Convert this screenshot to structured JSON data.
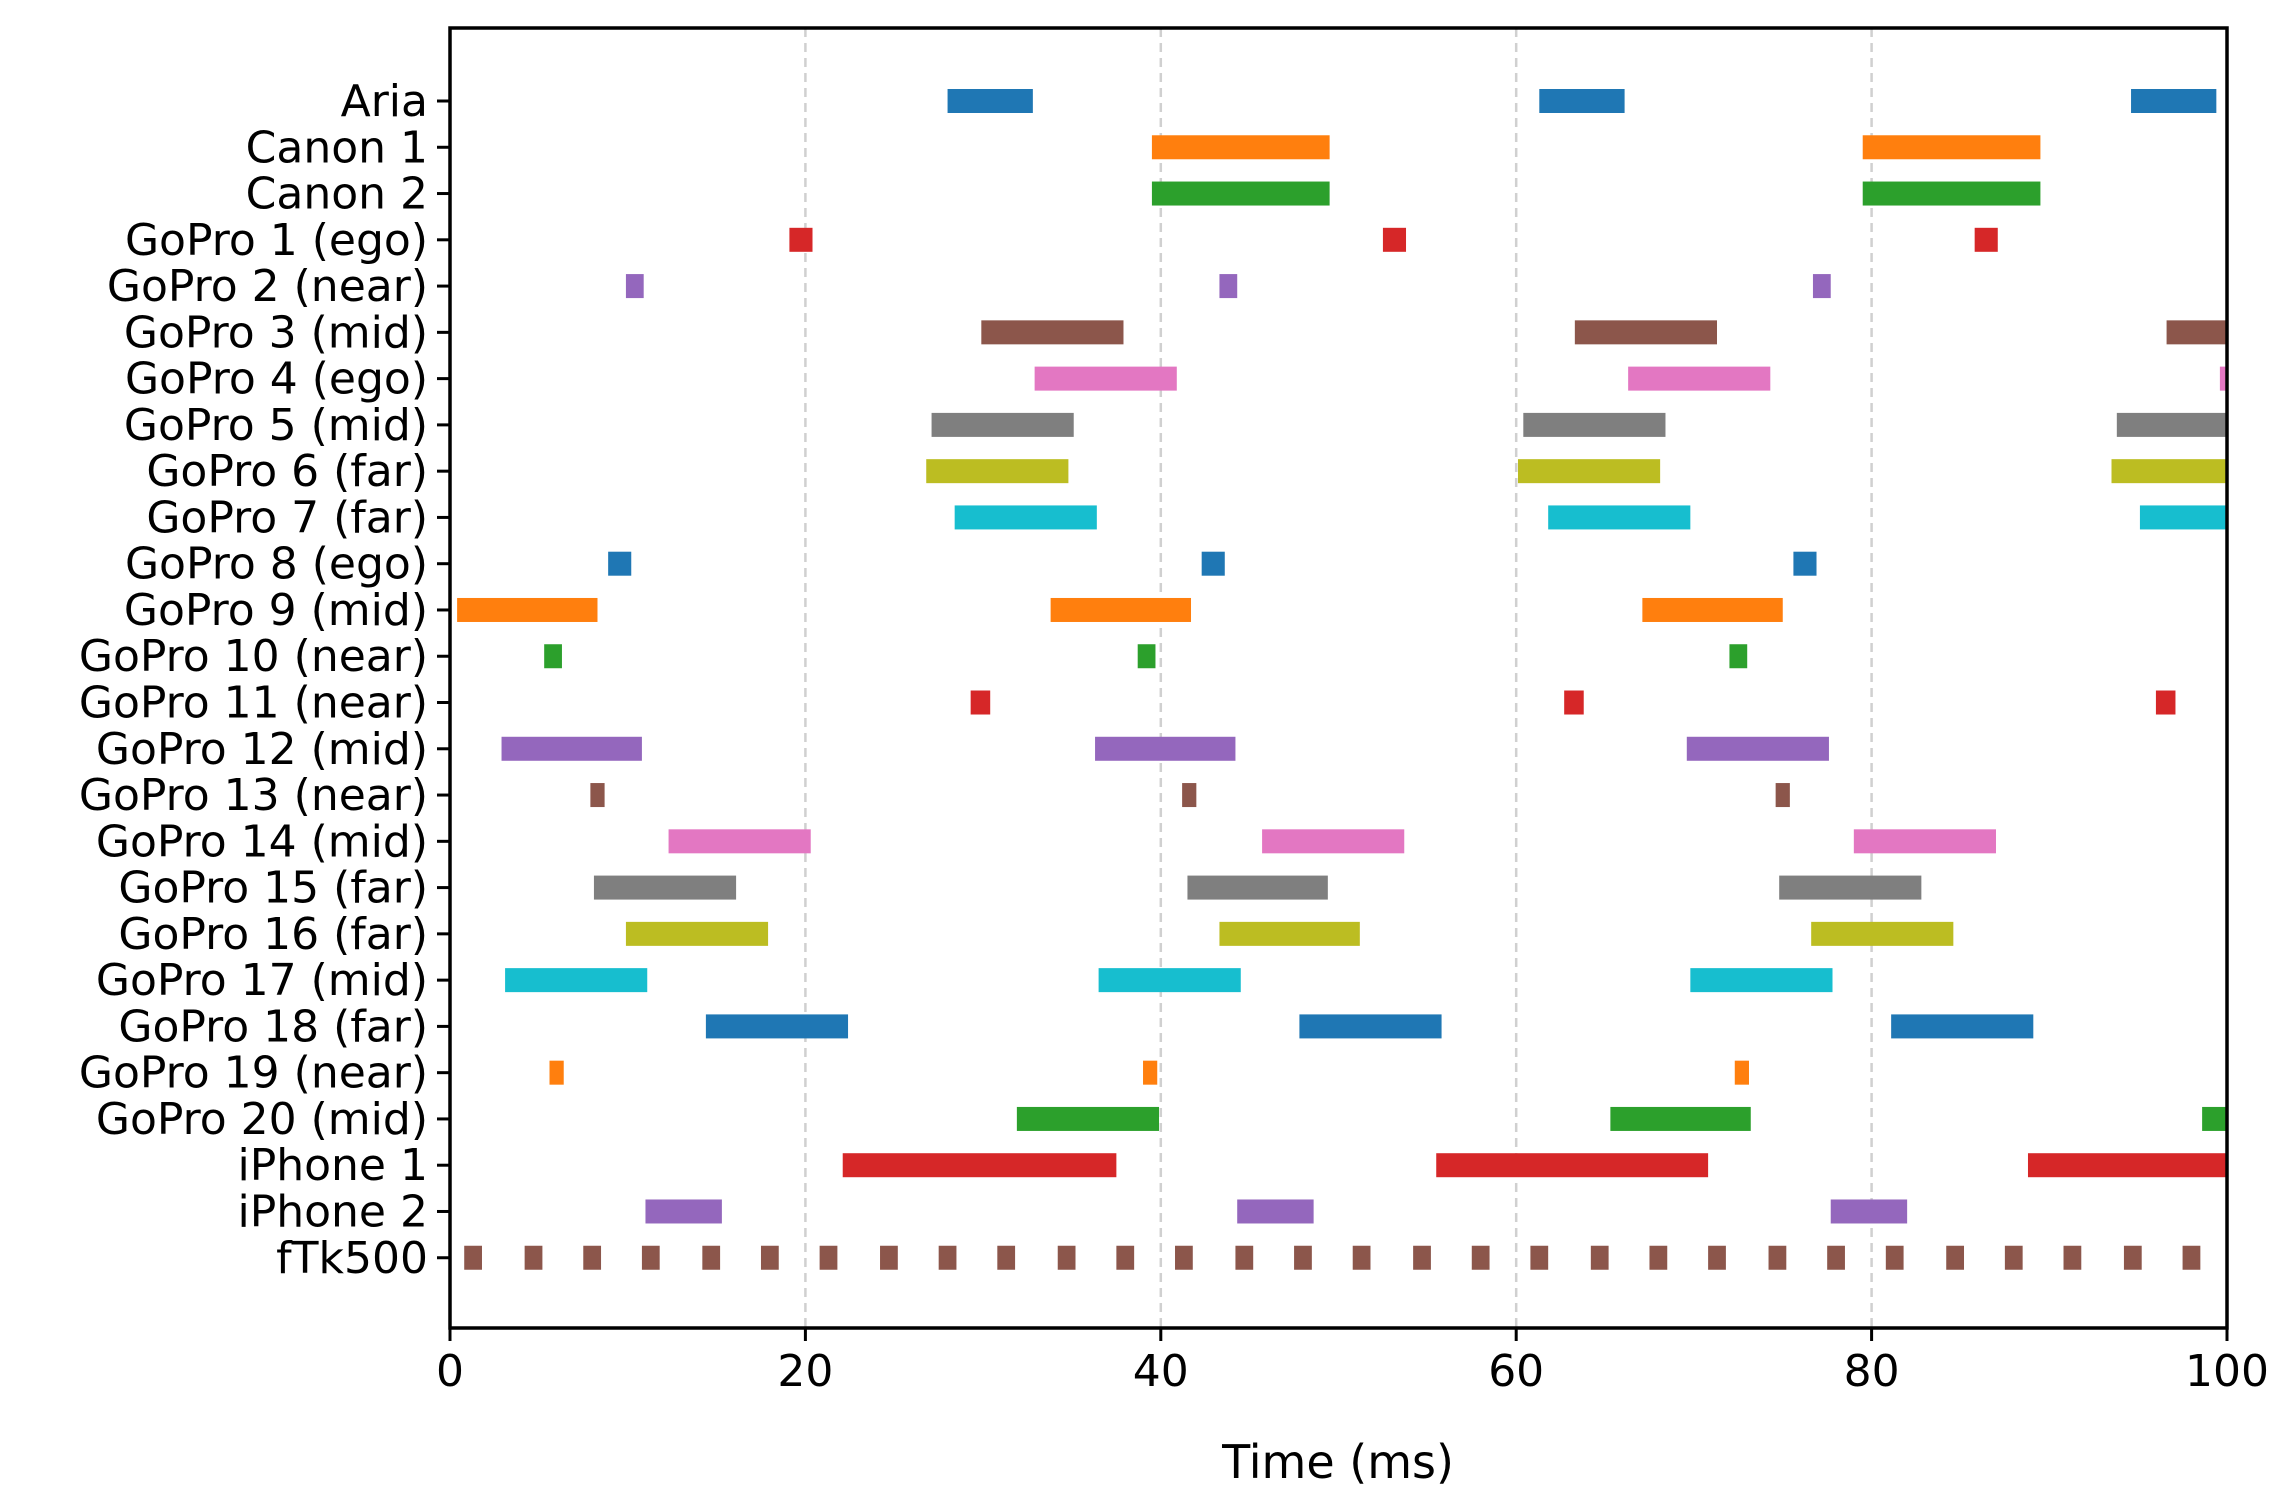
{
  "chart_data": {
    "type": "timeline",
    "title": "",
    "xlabel": "Time (ms)",
    "ylabel": "",
    "xlim": [
      0,
      100
    ],
    "xticks": [
      0,
      20,
      40,
      60,
      80,
      100
    ],
    "xtick_labels": [
      "0",
      "20",
      "40",
      "60",
      "80",
      "100"
    ],
    "grid": {
      "x_dashed_at": [
        20,
        40,
        60,
        80
      ]
    },
    "categories": [
      "Aria",
      "Canon 1",
      "Canon 2",
      "GoPro 1 (ego)",
      "GoPro 2 (near)",
      "GoPro 3 (mid)",
      "GoPro 4 (ego)",
      "GoPro 5 (mid)",
      "GoPro 6 (far)",
      "GoPro 7 (far)",
      "GoPro 8 (ego)",
      "GoPro 9 (mid)",
      "GoPro 10 (near)",
      "GoPro 11 (near)",
      "GoPro 12 (mid)",
      "GoPro 13 (near)",
      "GoPro 14 (mid)",
      "GoPro 15 (far)",
      "GoPro 16 (far)",
      "GoPro 17 (mid)",
      "GoPro 18 (far)",
      "GoPro 19 (near)",
      "GoPro 20 (mid)",
      "iPhone 1",
      "iPhone 2",
      "fTk500"
    ],
    "series": [
      {
        "name": "Aria",
        "color": "#1f77b4",
        "intervals": [
          [
            28.0,
            32.8
          ],
          [
            61.3,
            66.1
          ],
          [
            94.6,
            99.4
          ]
        ]
      },
      {
        "name": "Canon 1",
        "color": "#ff7f0e",
        "intervals": [
          [
            39.5,
            49.5
          ],
          [
            79.5,
            89.5
          ]
        ]
      },
      {
        "name": "Canon 2",
        "color": "#2ca02c",
        "intervals": [
          [
            39.5,
            49.5
          ],
          [
            79.5,
            89.5
          ]
        ]
      },
      {
        "name": "GoPro 1 (ego)",
        "color": "#d62728",
        "intervals": [
          [
            19.1,
            20.4
          ],
          [
            52.5,
            53.8
          ],
          [
            85.8,
            87.1
          ]
        ]
      },
      {
        "name": "GoPro 2 (near)",
        "color": "#9467bd",
        "intervals": [
          [
            9.9,
            10.9
          ],
          [
            43.3,
            44.3
          ],
          [
            76.7,
            77.7
          ]
        ]
      },
      {
        "name": "GoPro 3 (mid)",
        "color": "#8c564b",
        "intervals": [
          [
            29.9,
            37.9
          ],
          [
            63.3,
            71.3
          ],
          [
            96.6,
            100
          ]
        ]
      },
      {
        "name": "GoPro 4 (ego)",
        "color": "#e377c2",
        "intervals": [
          [
            32.9,
            40.9
          ],
          [
            66.3,
            74.3
          ],
          [
            99.6,
            100
          ]
        ]
      },
      {
        "name": "GoPro 5 (mid)",
        "color": "#7f7f7f",
        "intervals": [
          [
            27.1,
            35.1
          ],
          [
            60.4,
            68.4
          ],
          [
            93.8,
            100
          ]
        ]
      },
      {
        "name": "GoPro 6 (far)",
        "color": "#bcbd22",
        "intervals": [
          [
            26.8,
            34.8
          ],
          [
            60.1,
            68.1
          ],
          [
            93.5,
            100
          ]
        ]
      },
      {
        "name": "GoPro 7 (far)",
        "color": "#17becf",
        "intervals": [
          [
            28.4,
            36.4
          ],
          [
            61.8,
            69.8
          ],
          [
            95.1,
            100
          ]
        ]
      },
      {
        "name": "GoPro 8 (ego)",
        "color": "#1f77b4",
        "intervals": [
          [
            8.9,
            10.2
          ],
          [
            42.3,
            43.6
          ],
          [
            75.6,
            76.9
          ]
        ]
      },
      {
        "name": "GoPro 9 (mid)",
        "color": "#ff7f0e",
        "intervals": [
          [
            0.4,
            8.3
          ],
          [
            33.8,
            41.7
          ],
          [
            67.1,
            75.0
          ]
        ]
      },
      {
        "name": "GoPro 10 (near)",
        "color": "#2ca02c",
        "intervals": [
          [
            5.3,
            6.3
          ],
          [
            38.7,
            39.7
          ],
          [
            72.0,
            73.0
          ]
        ]
      },
      {
        "name": "GoPro 11 (near)",
        "color": "#d62728",
        "intervals": [
          [
            29.3,
            30.4
          ],
          [
            62.7,
            63.8
          ],
          [
            96.0,
            97.1
          ]
        ]
      },
      {
        "name": "GoPro 12 (mid)",
        "color": "#9467bd",
        "intervals": [
          [
            2.9,
            10.8
          ],
          [
            36.3,
            44.2
          ],
          [
            69.6,
            77.6
          ]
        ]
      },
      {
        "name": "GoPro 13 (near)",
        "color": "#8c564b",
        "intervals": [
          [
            7.9,
            8.7
          ],
          [
            41.2,
            42.0
          ],
          [
            74.6,
            75.4
          ]
        ]
      },
      {
        "name": "GoPro 14 (mid)",
        "color": "#e377c2",
        "intervals": [
          [
            12.3,
            20.3
          ],
          [
            45.7,
            53.7
          ],
          [
            79.0,
            87.0
          ]
        ]
      },
      {
        "name": "GoPro 15 (far)",
        "color": "#7f7f7f",
        "intervals": [
          [
            8.1,
            16.1
          ],
          [
            41.5,
            49.4
          ],
          [
            74.8,
            82.8
          ]
        ]
      },
      {
        "name": "GoPro 16 (far)",
        "color": "#bcbd22",
        "intervals": [
          [
            9.9,
            17.9
          ],
          [
            43.3,
            51.2
          ],
          [
            76.6,
            84.6
          ]
        ]
      },
      {
        "name": "GoPro 17 (mid)",
        "color": "#17becf",
        "intervals": [
          [
            3.1,
            11.1
          ],
          [
            36.5,
            44.5
          ],
          [
            69.8,
            77.8
          ]
        ]
      },
      {
        "name": "GoPro 18 (far)",
        "color": "#1f77b4",
        "intervals": [
          [
            14.4,
            22.4
          ],
          [
            47.8,
            55.8
          ],
          [
            81.1,
            89.1
          ]
        ]
      },
      {
        "name": "GoPro 19 (near)",
        "color": "#ff7f0e",
        "intervals": [
          [
            5.6,
            6.4
          ],
          [
            39.0,
            39.8
          ],
          [
            72.3,
            73.1
          ]
        ]
      },
      {
        "name": "GoPro 20 (mid)",
        "color": "#2ca02c",
        "intervals": [
          [
            31.9,
            39.9
          ],
          [
            65.3,
            73.2
          ],
          [
            98.6,
            100
          ]
        ]
      },
      {
        "name": "iPhone 1",
        "color": "#d62728",
        "intervals": [
          [
            22.1,
            37.5
          ],
          [
            55.5,
            70.8
          ],
          [
            88.8,
            100
          ]
        ]
      },
      {
        "name": "iPhone 2",
        "color": "#9467bd",
        "intervals": [
          [
            11.0,
            15.3
          ],
          [
            44.3,
            48.6
          ],
          [
            77.7,
            82.0
          ]
        ]
      },
      {
        "name": "fTk500",
        "color": "#8c564b",
        "intervals": [
          [
            0.8,
            1.8
          ],
          [
            4.2,
            5.2
          ],
          [
            7.5,
            8.5
          ],
          [
            10.8,
            11.8
          ],
          [
            14.2,
            15.2
          ],
          [
            17.5,
            18.5
          ],
          [
            20.8,
            21.8
          ],
          [
            24.2,
            25.2
          ],
          [
            27.5,
            28.5
          ],
          [
            30.8,
            31.8
          ],
          [
            34.2,
            35.2
          ],
          [
            37.5,
            38.5
          ],
          [
            40.8,
            41.8
          ],
          [
            44.2,
            45.2
          ],
          [
            47.5,
            48.5
          ],
          [
            50.8,
            51.8
          ],
          [
            54.2,
            55.2
          ],
          [
            57.5,
            58.5
          ],
          [
            60.8,
            61.8
          ],
          [
            64.2,
            65.2
          ],
          [
            67.5,
            68.5
          ],
          [
            70.8,
            71.8
          ],
          [
            74.2,
            75.2
          ],
          [
            77.5,
            78.5
          ],
          [
            80.8,
            81.8
          ],
          [
            84.2,
            85.2
          ],
          [
            87.5,
            88.5
          ],
          [
            90.8,
            91.8
          ],
          [
            94.2,
            95.2
          ],
          [
            97.5,
            98.5
          ]
        ]
      }
    ]
  }
}
